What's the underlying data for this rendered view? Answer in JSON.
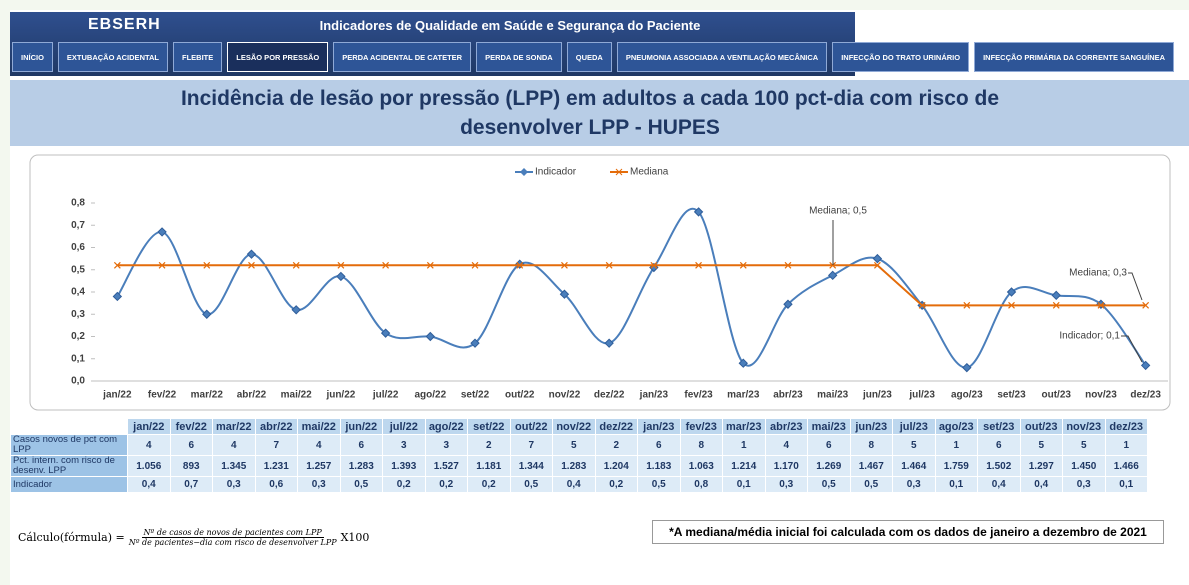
{
  "header": {
    "brand": "EBSERH",
    "title": "Indicadores de Qualidade em Saúde e Segurança do Paciente"
  },
  "nav": [
    "INÍCIO",
    "EXTUBAÇÃO ACIDENTAL",
    "FLEBITE",
    "LESÃO POR PRESSÃO",
    "PERDA ACIDENTAL DE CATETER",
    "PERDA DE SONDA",
    "QUEDA",
    "PNEUMONIA ASSOCIADA A VENTILAÇÃO MECÂNICA",
    "INFECÇÃO DO TRATO URINÁRIO",
    "INFECÇÃO PRIMÁRIA DA CORRENTE SANGUÍNEA"
  ],
  "active_nav": 3,
  "chart_data": {
    "type": "line",
    "title": "Incidência de lesão por pressão (LPP) em adultos a cada 100 pct-dia com risco de desenvolver LPP - HUPES",
    "categories": [
      "jan/22",
      "fev/22",
      "mar/22",
      "abr/22",
      "mai/22",
      "jun/22",
      "jul/22",
      "ago/22",
      "set/22",
      "out/22",
      "nov/22",
      "dez/22",
      "jan/23",
      "fev/23",
      "mar/23",
      "abr/23",
      "mai/23",
      "jun/23",
      "jul/23",
      "ago/23",
      "set/23",
      "out/23",
      "nov/23",
      "dez/23"
    ],
    "series": [
      {
        "name": "Indicador",
        "color": "#4a7ebb",
        "values": [
          0.38,
          0.67,
          0.3,
          0.57,
          0.32,
          0.47,
          0.215,
          0.2,
          0.17,
          0.525,
          0.39,
          0.17,
          0.51,
          0.76,
          0.08,
          0.345,
          0.475,
          0.55,
          0.34,
          0.06,
          0.4,
          0.385,
          0.345,
          0.07
        ]
      },
      {
        "name": "Mediana",
        "color": "#e46c0a",
        "values": [
          0.52,
          0.52,
          0.52,
          0.52,
          0.52,
          0.52,
          0.52,
          0.52,
          0.52,
          0.52,
          0.52,
          0.52,
          0.52,
          0.52,
          0.52,
          0.52,
          0.52,
          0.52,
          0.34,
          0.34,
          0.34,
          0.34,
          0.34,
          0.34
        ]
      }
    ],
    "ylim": [
      0,
      0.8
    ],
    "yticks": [
      {
        "value": 0,
        "label": "0,0"
      },
      {
        "value": 0.1,
        "label": "0,1"
      },
      {
        "value": 0.2,
        "label": "0,2"
      },
      {
        "value": 0.3,
        "label": "0,3"
      },
      {
        "value": 0.4,
        "label": "0,4"
      },
      {
        "value": 0.5,
        "label": "0,5"
      },
      {
        "value": 0.6,
        "label": "0,6"
      },
      {
        "value": 0.7,
        "label": "0,7"
      },
      {
        "value": 0.8,
        "label": "0,8"
      }
    ],
    "legend": "top",
    "annotations": [
      "Mediana; 0,5",
      "Mediana; 0,3",
      "Indicador; 0,1"
    ]
  },
  "table": {
    "rows": [
      {
        "label": "Casos novos de pct com LPP",
        "values": [
          "4",
          "6",
          "4",
          "7",
          "4",
          "6",
          "3",
          "3",
          "2",
          "7",
          "5",
          "2",
          "6",
          "8",
          "1",
          "4",
          "6",
          "8",
          "5",
          "1",
          "6",
          "5",
          "5",
          "1"
        ]
      },
      {
        "label": "Pct. intern. com risco de desenv. LPP",
        "values": [
          "1.056",
          "893",
          "1.345",
          "1.231",
          "1.257",
          "1.283",
          "1.393",
          "1.527",
          "1.181",
          "1.344",
          "1.283",
          "1.204",
          "1.183",
          "1.063",
          "1.214",
          "1.170",
          "1.269",
          "1.467",
          "1.464",
          "1.759",
          "1.502",
          "1.297",
          "1.450",
          "1.466"
        ]
      },
      {
        "label": "Indicador",
        "values": [
          "0,4",
          "0,7",
          "0,3",
          "0,6",
          "0,3",
          "0,5",
          "0,2",
          "0,2",
          "0,2",
          "0,5",
          "0,4",
          "0,2",
          "0,5",
          "0,8",
          "0,1",
          "0,3",
          "0,5",
          "0,5",
          "0,3",
          "0,1",
          "0,4",
          "0,4",
          "0,3",
          "0,1"
        ]
      }
    ]
  },
  "formula": {
    "lhs": "Cálculo(fórmula) =",
    "numerator": "Nº de casos de novos de pacientes com LPP",
    "denominator": "Nº de pacientes−dia com risco de desenvolver LPP",
    "factor": "X100"
  },
  "note": "*A mediana/média inicial foi calculada com os dados de janeiro a dezembro de 2021"
}
